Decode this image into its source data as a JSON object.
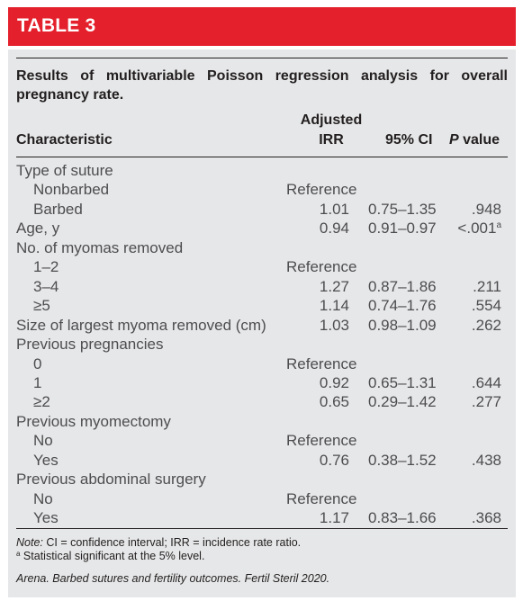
{
  "header": {
    "title": "TABLE 3"
  },
  "caption": "Results of multivariable Poisson regression analysis for overall pregnancy rate.",
  "columns": {
    "characteristic": "Characteristic",
    "irr_line1": "Adjusted",
    "irr_line2": "IRR",
    "ci": "95% CI",
    "p_italic": "P",
    "p_rest": " value"
  },
  "rows": [
    {
      "label": "Type of suture",
      "indent": false,
      "irr": "",
      "ci": "",
      "p": "",
      "sup": ""
    },
    {
      "label": "Nonbarbed",
      "indent": true,
      "irr": "Reference",
      "ci": "",
      "p": "",
      "sup": ""
    },
    {
      "label": "Barbed",
      "indent": true,
      "irr": "1.01",
      "ci": "0.75–1.35",
      "p": ".948",
      "sup": ""
    },
    {
      "label": "Age, y",
      "indent": false,
      "irr": "0.94",
      "ci": "0.91–0.97",
      "p": "<.001",
      "sup": "a"
    },
    {
      "label": "No. of myomas removed",
      "indent": false,
      "irr": "",
      "ci": "",
      "p": "",
      "sup": ""
    },
    {
      "label": "1–2",
      "indent": true,
      "irr": "Reference",
      "ci": "",
      "p": "",
      "sup": ""
    },
    {
      "label": "3–4",
      "indent": true,
      "irr": "1.27",
      "ci": "0.87–1.86",
      "p": ".211",
      "sup": ""
    },
    {
      "label": "≥5",
      "indent": true,
      "irr": "1.14",
      "ci": "0.74–1.76",
      "p": ".554",
      "sup": ""
    },
    {
      "label": "Size of largest myoma removed (cm)",
      "indent": false,
      "irr": "1.03",
      "ci": "0.98–1.09",
      "p": ".262",
      "sup": ""
    },
    {
      "label": "Previous pregnancies",
      "indent": false,
      "irr": "",
      "ci": "",
      "p": "",
      "sup": ""
    },
    {
      "label": "0",
      "indent": true,
      "irr": "Reference",
      "ci": "",
      "p": "",
      "sup": ""
    },
    {
      "label": "1",
      "indent": true,
      "irr": "0.92",
      "ci": "0.65–1.31",
      "p": ".644",
      "sup": ""
    },
    {
      "label": "≥2",
      "indent": true,
      "irr": "0.65",
      "ci": "0.29–1.42",
      "p": ".277",
      "sup": ""
    },
    {
      "label": "Previous myomectomy",
      "indent": false,
      "irr": "",
      "ci": "",
      "p": "",
      "sup": ""
    },
    {
      "label": "No",
      "indent": true,
      "irr": "Reference",
      "ci": "",
      "p": "",
      "sup": ""
    },
    {
      "label": "Yes",
      "indent": true,
      "irr": "0.76",
      "ci": "0.38–1.52",
      "p": ".438",
      "sup": ""
    },
    {
      "label": "Previous abdominal surgery",
      "indent": false,
      "irr": "",
      "ci": "",
      "p": "",
      "sup": ""
    },
    {
      "label": "No",
      "indent": true,
      "irr": "Reference",
      "ci": "",
      "p": "",
      "sup": ""
    },
    {
      "label": "Yes",
      "indent": true,
      "irr": "1.17",
      "ci": "0.83–1.66",
      "p": ".368",
      "sup": ""
    }
  ],
  "notes": {
    "note_label": "Note:",
    "note_text": " CI = confidence interval; IRR = incidence rate ratio.",
    "footnote_mark": "a",
    "footnote_text": " Statistical significant at the 5% level."
  },
  "source": "Arena. Barbed sutures and fertility outcomes. Fertil Steril 2020.",
  "colors": {
    "header_bg": "#e4202c",
    "panel_bg": "#e6e7e8",
    "text": "#231f20",
    "body_text": "#4d4d4f"
  }
}
